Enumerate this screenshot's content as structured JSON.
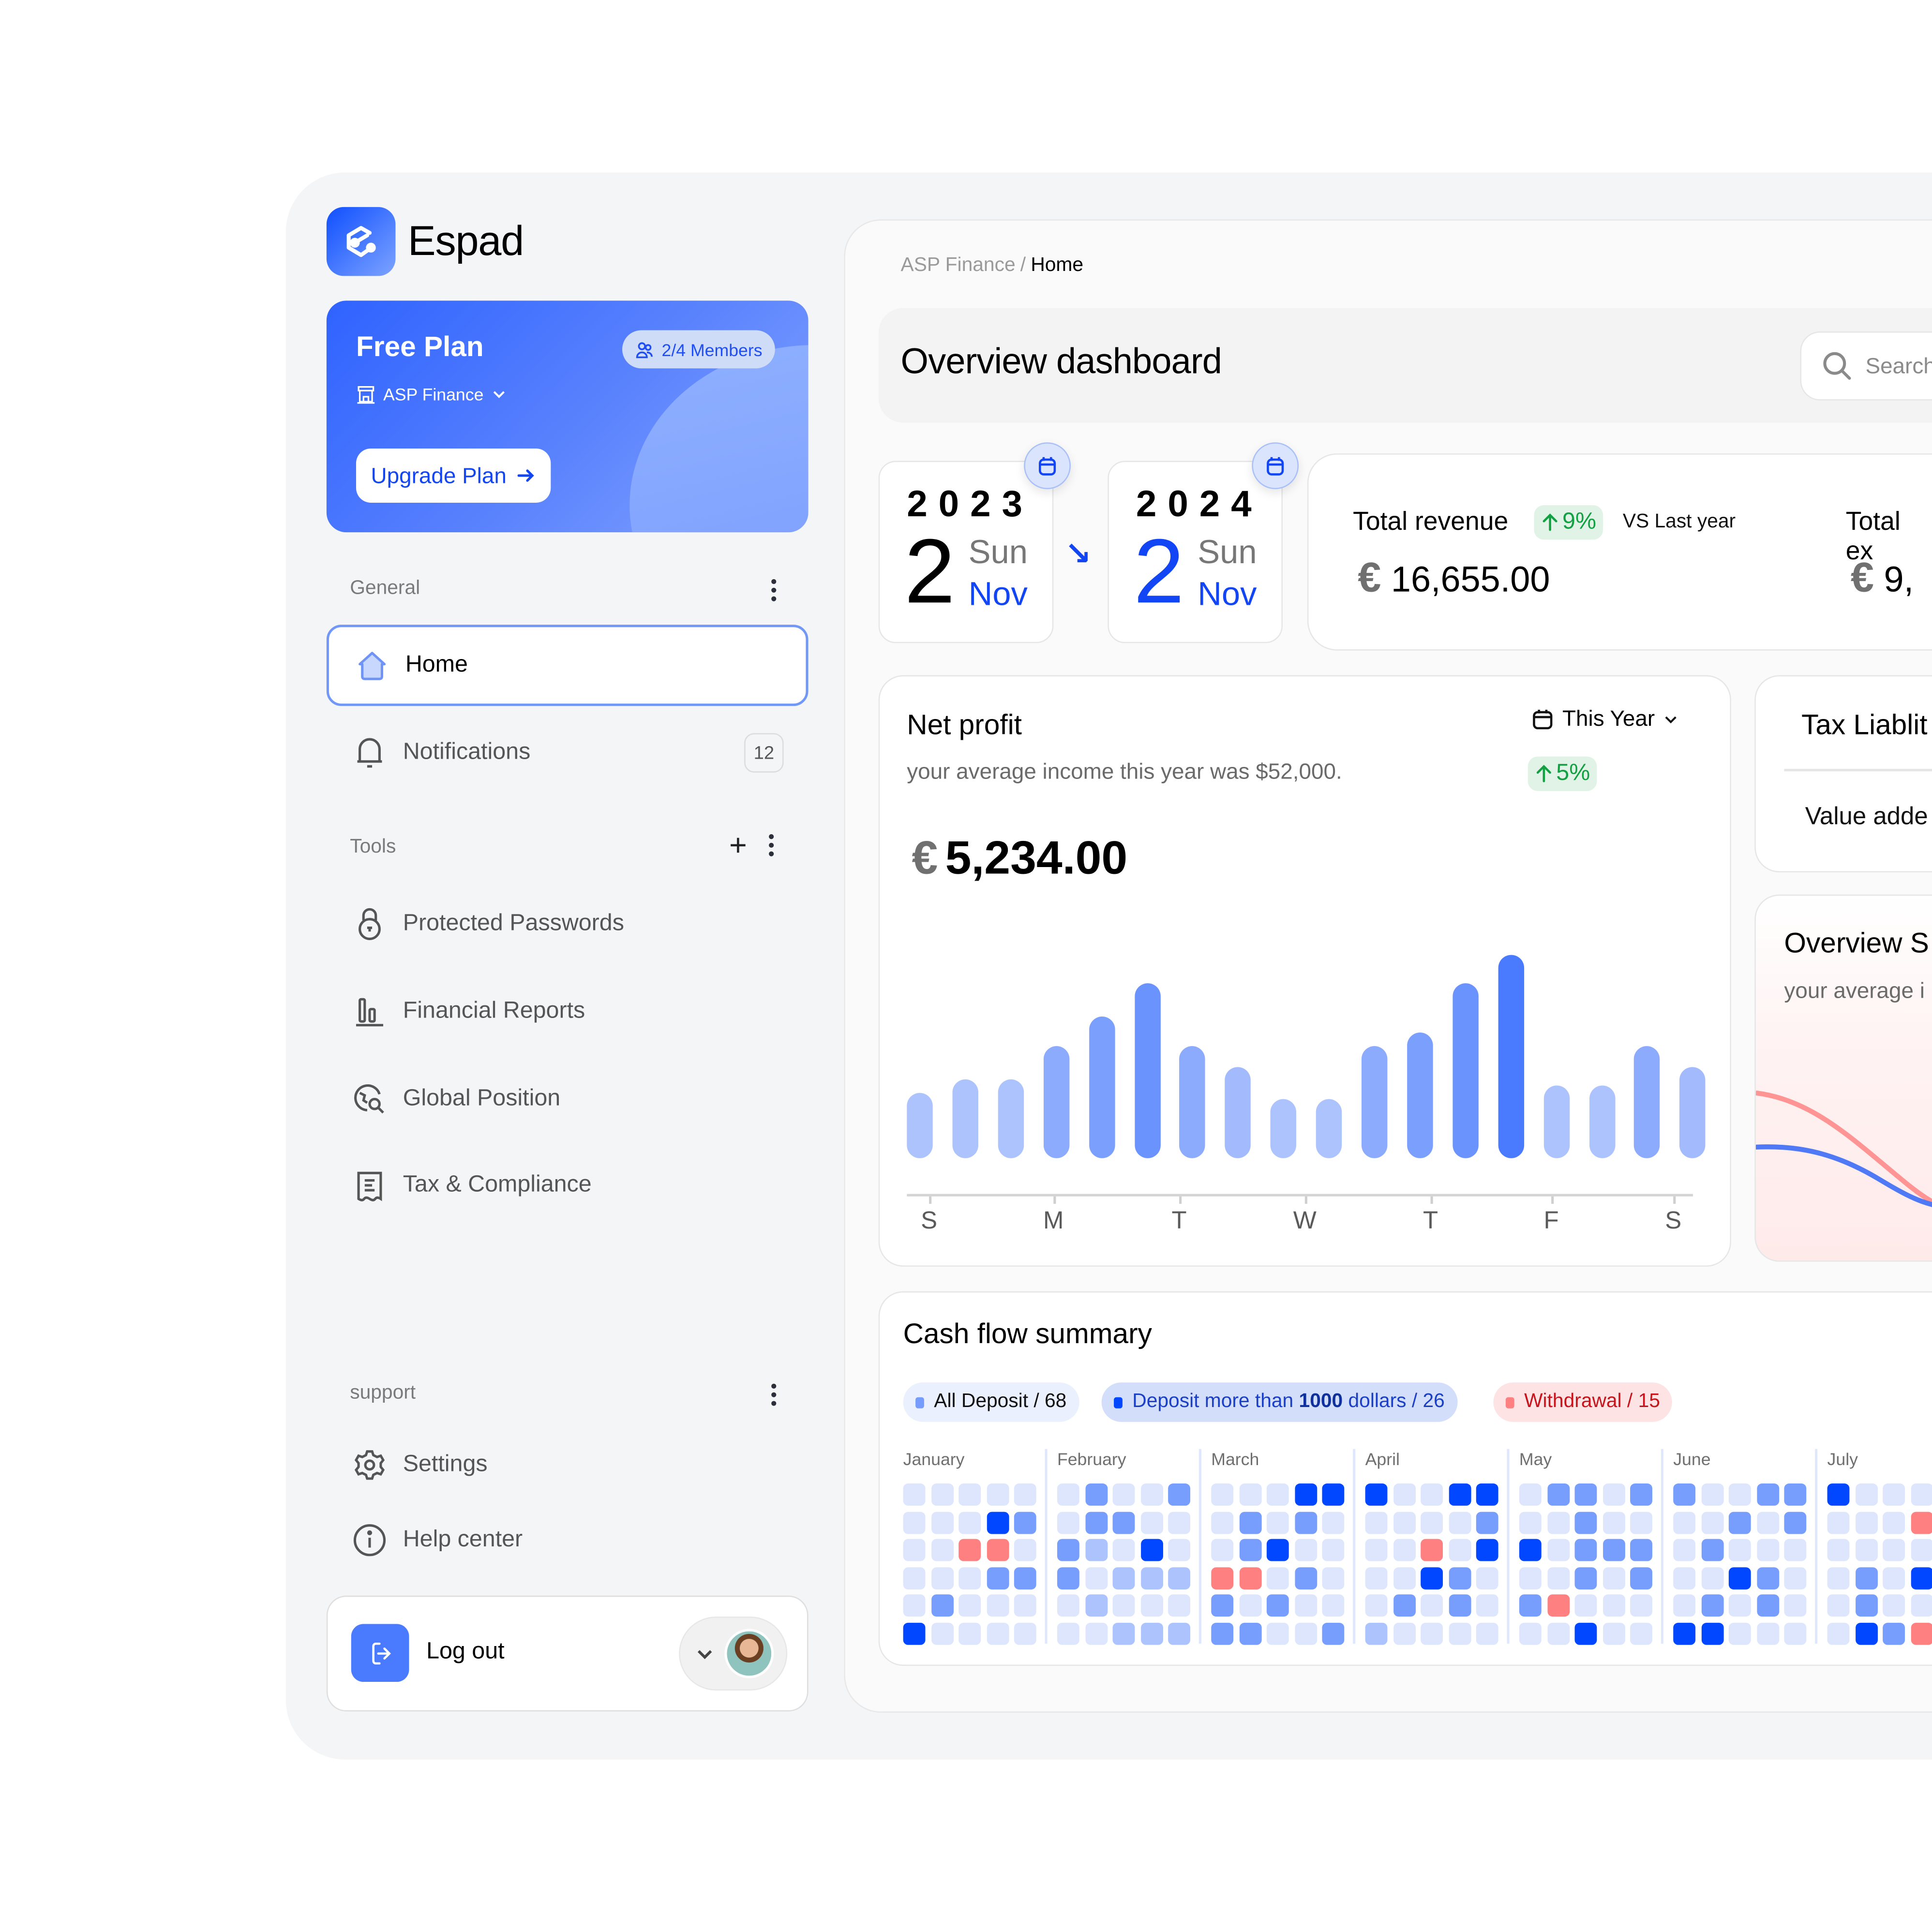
{
  "app": {
    "name": "Espad"
  },
  "plan": {
    "title": "Free Plan",
    "members": "2/4 Members",
    "organization": "ASP Finance",
    "upgrade_label": "Upgrade Plan"
  },
  "sidebar": {
    "general": {
      "label": "General",
      "items": [
        {
          "label": "Home",
          "icon": "home-icon",
          "active": true
        },
        {
          "label": "Notifications",
          "icon": "bell-icon",
          "badge": "12"
        }
      ]
    },
    "tools": {
      "label": "Tools",
      "items": [
        {
          "label": "Protected Passwords",
          "icon": "lock-icon"
        },
        {
          "label": "Financial Reports",
          "icon": "bar-chart-icon"
        },
        {
          "label": "Global Position",
          "icon": "globe-search-icon"
        },
        {
          "label": "Tax & Compliance",
          "icon": "receipt-icon"
        }
      ]
    },
    "support": {
      "label": "support",
      "items": [
        {
          "label": "Settings",
          "icon": "gear-icon"
        },
        {
          "label": "Help center",
          "icon": "info-icon"
        }
      ]
    },
    "logout_label": "Log out"
  },
  "header": {
    "breadcrumb": [
      "ASP Finance",
      "Home"
    ],
    "breadcrumb_sep": "/",
    "title": "Overview dashboard",
    "search_placeholder": "Search"
  },
  "date_range": {
    "from": {
      "year": "2023",
      "day": "2",
      "weekday": "Sun",
      "month": "Nov"
    },
    "to": {
      "year": "2024",
      "day": "2",
      "weekday": "Sun",
      "month": "Nov"
    },
    "arrow": "↘"
  },
  "kpis": {
    "revenue": {
      "label": "Total revenue",
      "delta": "9%",
      "vs": "VS Last year",
      "currency": "€",
      "value": "16,655.00"
    },
    "expense": {
      "label": "Total ex",
      "currency": "€",
      "value": "9,",
      "truncated": true
    }
  },
  "net_profit": {
    "title": "Net profit",
    "subtitle": "your average income this year was $52,000.",
    "period": "This Year",
    "delta": "5%",
    "currency": "€",
    "value": "5,234.00"
  },
  "tax_liability": {
    "title": "Tax Liablit",
    "row": "Value adde"
  },
  "overview_stats": {
    "title": "Overview S",
    "subtitle": "your average i"
  },
  "cash_flow": {
    "title": "Cash flow summary",
    "filters": [
      {
        "label": "All Deposit / 68",
        "color": "#769cfd",
        "bg": "#eaf0fe",
        "text": "#111111"
      },
      {
        "label_pre": "Deposit more than ",
        "label_bold": "1000",
        "label_post": " dollars / 26",
        "color": "#0047ff",
        "bg": "#d3defb",
        "text": "#1b3fc4"
      },
      {
        "label": "Withdrawal / 15",
        "color": "#ff8080",
        "bg": "#fde3e3",
        "text": "#c6141c"
      }
    ],
    "months": [
      "January",
      "February",
      "March",
      "April",
      "May",
      "June",
      "July"
    ]
  },
  "colors": {
    "accent": "#1246f5",
    "level0": "#dde6fd",
    "level1": "#adc3fd",
    "level2": "#779dfd",
    "level3": "#0047ff",
    "withdrawal": "#ff8080",
    "positive": "#12a043"
  },
  "chart_data": [
    {
      "type": "bar",
      "title": "Net profit",
      "xlabel": "",
      "ylabel": "",
      "x_tick_labels": [
        "S",
        "M",
        "T",
        "W",
        "T",
        "F",
        "S"
      ],
      "categories": [
        "1",
        "2",
        "3",
        "4",
        "5",
        "6",
        "7",
        "8",
        "9",
        "10",
        "11",
        "12",
        "13",
        "14",
        "15",
        "16",
        "17",
        "18"
      ],
      "values": [
        32,
        39,
        39,
        55,
        70,
        86,
        55,
        45,
        29,
        29,
        55,
        62,
        86,
        100,
        36,
        36,
        55,
        45
      ],
      "ylim": [
        0,
        100
      ],
      "grid": false,
      "note": "relative bar heights (max bar = 100); no y-axis shown"
    },
    {
      "type": "heatmap",
      "title": "Cash flow summary",
      "legend": [
        "All Deposit / 68",
        "Deposit more than 1000 dollars / 26",
        "Withdrawal / 15"
      ],
      "encoding": "0=very light, 1=light, 2=medium (All Deposit), 3=dark (Deposit > 1000), R=Withdrawal",
      "months": [
        {
          "name": "January",
          "cells": [
            [
              "0",
              "0",
              "0",
              "0",
              "0"
            ],
            [
              "0",
              "0",
              "0",
              "3",
              "2"
            ],
            [
              "0",
              "0",
              "R",
              "R",
              "0"
            ],
            [
              "0",
              "0",
              "0",
              "2",
              "2"
            ],
            [
              "0",
              "2",
              "0",
              "0",
              "0"
            ],
            [
              "3",
              "0",
              "0",
              "0",
              "0"
            ]
          ]
        },
        {
          "name": "February",
          "cells": [
            [
              "0",
              "2",
              "0",
              "0",
              "2"
            ],
            [
              "0",
              "2",
              "2",
              "0",
              "0"
            ],
            [
              "2",
              "1",
              "0",
              "3",
              "0"
            ],
            [
              "2",
              "0",
              "1",
              "1",
              "1"
            ],
            [
              "0",
              "1",
              "0",
              "0",
              "0"
            ],
            [
              "0",
              "0",
              "1",
              "1",
              "1"
            ]
          ]
        },
        {
          "name": "March",
          "cells": [
            [
              "0",
              "0",
              "0",
              "3",
              "3"
            ],
            [
              "0",
              "2",
              "0",
              "2",
              "0"
            ],
            [
              "0",
              "2",
              "3",
              "0",
              "0"
            ],
            [
              "R",
              "R",
              "0",
              "2",
              "0"
            ],
            [
              "2",
              "0",
              "2",
              "0",
              "0"
            ],
            [
              "2",
              "2",
              "0",
              "0",
              "2"
            ]
          ]
        },
        {
          "name": "April",
          "cells": [
            [
              "3",
              "0",
              "0",
              "3",
              "3"
            ],
            [
              "0",
              "0",
              "0",
              "0",
              "2"
            ],
            [
              "0",
              "0",
              "R",
              "0",
              "3"
            ],
            [
              "0",
              "0",
              "3",
              "2",
              "0"
            ],
            [
              "0",
              "2",
              "0",
              "2",
              "0"
            ],
            [
              "1",
              "0",
              "0",
              "0",
              "0"
            ]
          ]
        },
        {
          "name": "May",
          "cells": [
            [
              "0",
              "2",
              "2",
              "0",
              "2"
            ],
            [
              "0",
              "0",
              "2",
              "0",
              "0"
            ],
            [
              "3",
              "0",
              "2",
              "2",
              "2"
            ],
            [
              "0",
              "0",
              "2",
              "0",
              "2"
            ],
            [
              "2",
              "R",
              "0",
              "0",
              "0"
            ],
            [
              "0",
              "0",
              "3",
              "0",
              "0"
            ]
          ]
        },
        {
          "name": "June",
          "cells": [
            [
              "2",
              "0",
              "0",
              "2",
              "2"
            ],
            [
              "0",
              "0",
              "2",
              "0",
              "2"
            ],
            [
              "0",
              "2",
              "0",
              "0",
              "0"
            ],
            [
              "0",
              "0",
              "3",
              "2",
              "0"
            ],
            [
              "0",
              "2",
              "0",
              "2",
              "0"
            ],
            [
              "3",
              "3",
              "0",
              "0",
              "0"
            ]
          ]
        },
        {
          "name": "July",
          "cells": [
            [
              "3",
              "0",
              "0",
              "0",
              "0"
            ],
            [
              "0",
              "0",
              "0",
              "R",
              "0"
            ],
            [
              "0",
              "0",
              "0",
              "0",
              "0"
            ],
            [
              "0",
              "2",
              "0",
              "3",
              "0"
            ],
            [
              "0",
              "2",
              "0",
              "0",
              "0"
            ],
            [
              "0",
              "3",
              "2",
              "R",
              "0"
            ]
          ]
        }
      ]
    },
    {
      "type": "line",
      "title": "Overview S",
      "series": [
        {
          "name": "red",
          "color": "#ff8080",
          "values": [
            80,
            62,
            40,
            25,
            18
          ]
        },
        {
          "name": "blue",
          "color": "#4f78f5",
          "values": [
            55,
            52,
            42,
            30,
            24
          ]
        }
      ],
      "note": "partially visible, clipped at right edge"
    }
  ]
}
